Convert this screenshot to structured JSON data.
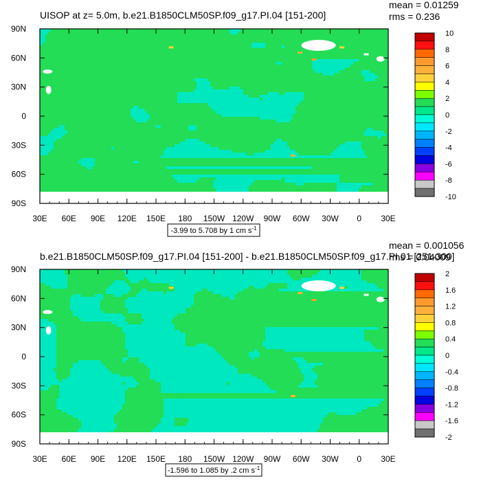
{
  "chart_data": [
    {
      "type": "heatmap",
      "title": "UISOP at z=   5.0m, b.e21.B1850CLM50SP.f09_g17.PI.04 [151-200]",
      "stats": {
        "mean": "mean = 0.01259",
        "rms": "rms = 0.236"
      },
      "x_tick_labels": [
        "30E",
        "60E",
        "90E",
        "120E",
        "150E",
        "180",
        "150W",
        "120W",
        "90W",
        "60W",
        "30W",
        "0",
        "30E"
      ],
      "y_tick_labels": [
        "90N",
        "60N",
        "30N",
        "0",
        "30S",
        "60S",
        "90S"
      ],
      "lon_range": [
        30,
        390
      ],
      "lat_range": [
        -90,
        90
      ],
      "range_note": "-3.99 to 5.708 by 1 cm s",
      "range_note_sup": "-1",
      "colorbar_labels": [
        "10",
        "8",
        "6",
        "4",
        "2",
        "0",
        "-2",
        "-4",
        "-6",
        "-8",
        "-10"
      ],
      "colorbar_colors": [
        "#c00000",
        "#ff1010",
        "#ff6a00",
        "#ff9a2e",
        "#ffb03a",
        "#ffd23c",
        "#ffff00",
        "#7cff00",
        "#22dd55",
        "#00e88a",
        "#00ffd8",
        "#00e8ff",
        "#00b4ff",
        "#0080ff",
        "#0040ff",
        "#0000e0",
        "#8a00e0",
        "#ff00ff",
        "#c8c8c8",
        "#707070"
      ],
      "dominant_value_range": [
        -2,
        2
      ]
    },
    {
      "type": "heatmap",
      "title": "b.e21.B1850CLM50SP.f09_g17.PI.04 [151-200] - b.e21.B1850CLM50SP.f09_g17.PI.01 [251-300]",
      "stats": {
        "mean": "mean = 0.001056",
        "rms": "rms = 0.04009"
      },
      "x_tick_labels": [
        "30E",
        "60E",
        "90E",
        "120E",
        "150E",
        "180",
        "150W",
        "120W",
        "90W",
        "60W",
        "30W",
        "0",
        "30E"
      ],
      "y_tick_labels": [
        "90N",
        "60N",
        "30N",
        "0",
        "30S",
        "60S",
        "90S"
      ],
      "lon_range": [
        30,
        390
      ],
      "lat_range": [
        -90,
        90
      ],
      "range_note": "-1.596 to 1.085 by .2 cm s",
      "range_note_sup": "-1",
      "colorbar_labels": [
        "2",
        "1.6",
        "1.2",
        "0.8",
        "0.4",
        "0",
        "-0.4",
        "-0.8",
        "-1.2",
        "-1.6",
        "-2"
      ],
      "colorbar_colors": [
        "#c00000",
        "#ff1010",
        "#ff6a00",
        "#ff9a2e",
        "#ffb03a",
        "#ffd23c",
        "#ffff00",
        "#7cff00",
        "#22dd55",
        "#00e88a",
        "#00ffd8",
        "#00e8ff",
        "#00b4ff",
        "#0080ff",
        "#0040ff",
        "#0000e0",
        "#8a00e0",
        "#ff00ff",
        "#c8c8c8",
        "#707070"
      ],
      "dominant_value_range": [
        -0.4,
        0.4
      ]
    }
  ],
  "colors": {
    "positive_field": "#22dd55",
    "negative_field": "#00e8c0",
    "missing_land": "#ffffff"
  }
}
